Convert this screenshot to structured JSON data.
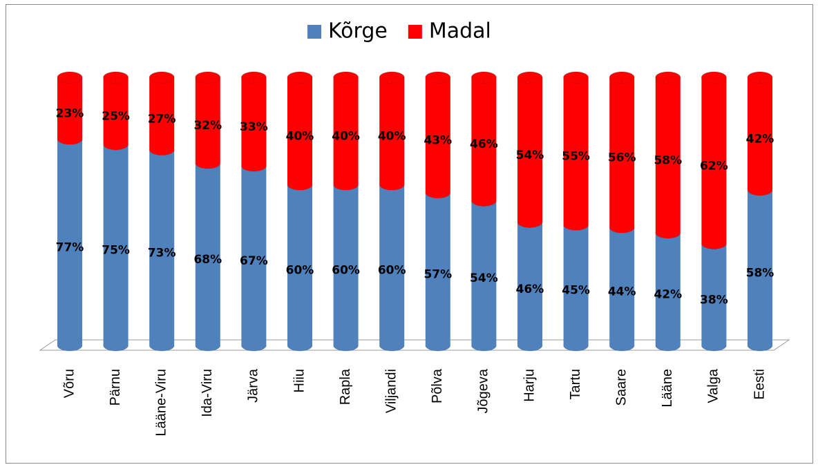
{
  "chart_data": {
    "type": "stacked-bar",
    "categories": [
      "Võru",
      "Pärnu",
      "Lääne-Viru",
      "Ida-Viru",
      "Järva",
      "Hiiu",
      "Rapla",
      "Viljandi",
      "Põlva",
      "Jõgeva",
      "Harju",
      "Tartu",
      "Saare",
      "Lääne",
      "Valga",
      "Eesti"
    ],
    "series": [
      {
        "name": "Kõrge",
        "color": "#4f81bd",
        "values": [
          77,
          75,
          73,
          68,
          67,
          60,
          60,
          60,
          57,
          54,
          46,
          45,
          44,
          42,
          38,
          58
        ],
        "value_labels": [
          "77%",
          "75%",
          "73%",
          "68%",
          "67%",
          "60%",
          "60%",
          "60%",
          "57%",
          "54%",
          "46%",
          "45%",
          "44%",
          "42%",
          "38%",
          "58%"
        ]
      },
      {
        "name": "Madal",
        "color": "#ff0000",
        "values": [
          23,
          25,
          27,
          32,
          33,
          40,
          40,
          40,
          43,
          46,
          54,
          55,
          56,
          58,
          62,
          42
        ],
        "value_labels": [
          "23%",
          "25%",
          "27%",
          "32%",
          "33%",
          "40%",
          "40%",
          "40%",
          "43%",
          "46%",
          "54%",
          "55%",
          "56%",
          "58%",
          "62%",
          "42%"
        ]
      }
    ],
    "legend": "top"
  }
}
